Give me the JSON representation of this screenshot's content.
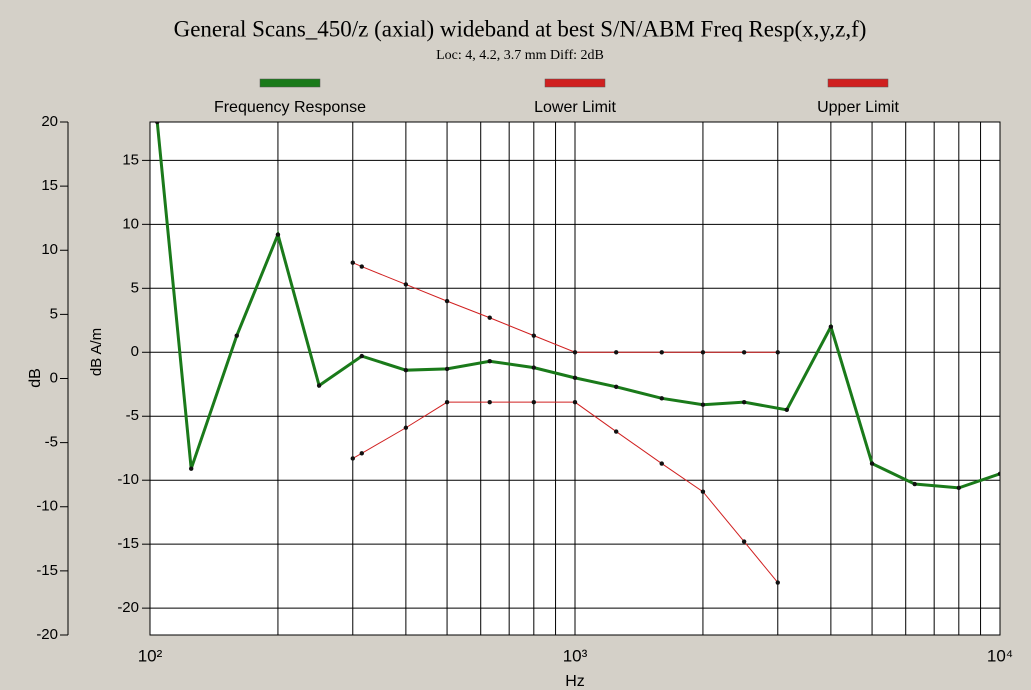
{
  "chart_data": {
    "type": "line",
    "title": "General Scans_450/z (axial) wideband at best S/N/ABM Freq Resp(x,y,z,f)",
    "subtitle": "Loc: 4, 4.2, 3.7 mm Diff: 2dB",
    "xlabel": "Hz",
    "ylabel": "dB A/m",
    "y2label": "dB",
    "xscale": "log",
    "xlim": [
      100,
      10000
    ],
    "xticks": [
      {
        "value": 100,
        "label": "10²"
      },
      {
        "value": 1000,
        "label": "10³"
      },
      {
        "value": 10000,
        "label": "10⁴"
      }
    ],
    "xminorticks": [
      200,
      300,
      400,
      500,
      600,
      700,
      800,
      900,
      2000,
      3000,
      4000,
      5000,
      6000,
      7000,
      8000,
      9000
    ],
    "ylim": [
      -22.1,
      18
    ],
    "yticks": [
      -20,
      -15,
      -10,
      -5,
      0,
      5,
      10,
      15
    ],
    "y2lim": [
      -20,
      20
    ],
    "y2ticks": [
      -20,
      -15,
      -10,
      -5,
      0,
      5,
      10,
      15,
      20
    ],
    "grid": true,
    "legend": "top",
    "series": [
      {
        "name": "Frequency Response",
        "color": "#1a7a1a",
        "x": [
          104,
          125,
          160,
          200,
          250,
          315,
          400,
          500,
          630,
          800,
          1000,
          1250,
          1600,
          2000,
          2500,
          3150,
          4000,
          5000,
          6300,
          8000,
          10000
        ],
        "values": [
          18,
          -9.1,
          1.3,
          9.2,
          -2.6,
          -0.3,
          -1.4,
          -1.3,
          -0.7,
          -1.2,
          -2.0,
          -2.7,
          -3.6,
          -4.1,
          -3.9,
          -4.5,
          2.0,
          -8.7,
          -10.3,
          -10.6,
          -9.5
        ]
      },
      {
        "name": "Lower Limit",
        "color": "#d02020",
        "x": [
          300,
          315,
          400,
          500,
          630,
          800,
          1000,
          1250,
          1600,
          2000,
          2500,
          3000
        ],
        "values": [
          -8.3,
          -7.9,
          -5.9,
          -3.9,
          -3.9,
          -3.9,
          -3.9,
          -6.2,
          -8.7,
          -10.9,
          -14.8,
          -18.0
        ]
      },
      {
        "name": "Upper Limit",
        "color": "#d02020",
        "x": [
          300,
          315,
          400,
          500,
          630,
          800,
          1000,
          1250,
          1600,
          2000,
          2500,
          3000
        ],
        "values": [
          7.0,
          6.7,
          5.3,
          4.0,
          2.7,
          1.3,
          0,
          0,
          0,
          0,
          0,
          0
        ]
      }
    ]
  }
}
